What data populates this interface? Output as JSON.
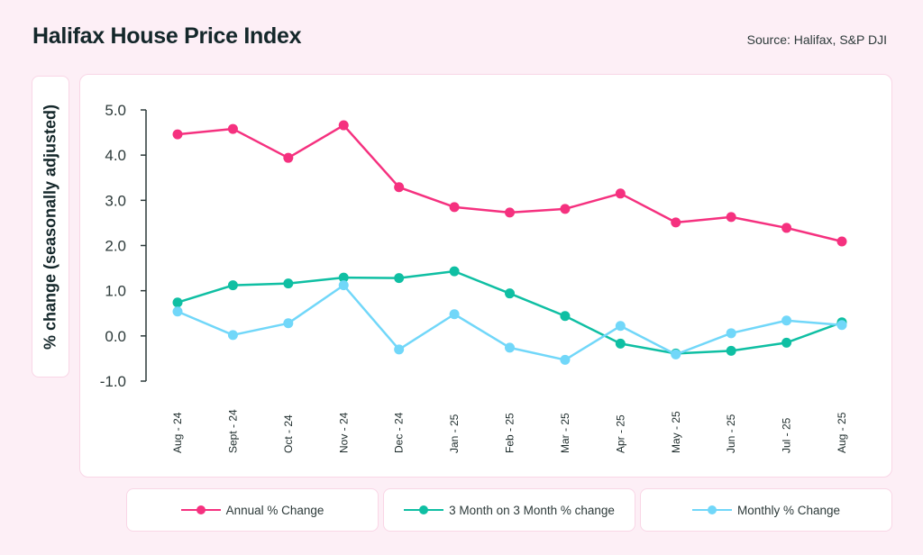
{
  "header": {
    "title": "Halifax House Price Index",
    "source": "Source: Halifax, S&P DJI"
  },
  "chart_data": {
    "type": "line",
    "title": "Halifax House Price Index",
    "xlabel": "",
    "ylabel": "% change (seasonally adjusted)",
    "ylim": [
      -1.0,
      5.0
    ],
    "yticks": [
      "5.0",
      "4.0",
      "3.0",
      "2.0",
      "1.0",
      "0.0",
      "-1.0"
    ],
    "ytick_values": [
      5,
      4,
      3,
      2,
      1,
      0,
      -1
    ],
    "grid": false,
    "legend_position": "bottom",
    "categories": [
      "Aug - 24",
      "Sept - 24",
      "Oct - 24",
      "Nov - 24",
      "Dec - 24",
      "Jan - 25",
      "Feb - 25",
      "Mar - 25",
      "Apr - 25",
      "May - 25",
      "Jun - 25",
      "Jul - 25",
      "Aug - 25"
    ],
    "series": [
      {
        "name": "Annual % Change",
        "color": "#f5317f",
        "values": [
          4.46,
          4.58,
          3.94,
          4.66,
          3.29,
          2.85,
          2.73,
          2.81,
          3.15,
          2.51,
          2.63,
          2.39,
          2.09
        ]
      },
      {
        "name": "3 Month on 3 Month % change",
        "color": "#0fbfa3",
        "values": [
          0.74,
          1.12,
          1.16,
          1.29,
          1.28,
          1.43,
          0.94,
          0.44,
          -0.17,
          -0.39,
          -0.33,
          -0.15,
          0.3
        ]
      },
      {
        "name": "Monthly % Change",
        "color": "#71d7f9",
        "values": [
          0.54,
          0.02,
          0.28,
          1.12,
          -0.3,
          0.48,
          -0.26,
          -0.53,
          0.22,
          -0.41,
          0.06,
          0.34,
          0.24
        ]
      }
    ]
  },
  "colors": {
    "background": "#fdeff6",
    "card_border": "#f9d6e6",
    "axis": "#2d3a3a"
  }
}
